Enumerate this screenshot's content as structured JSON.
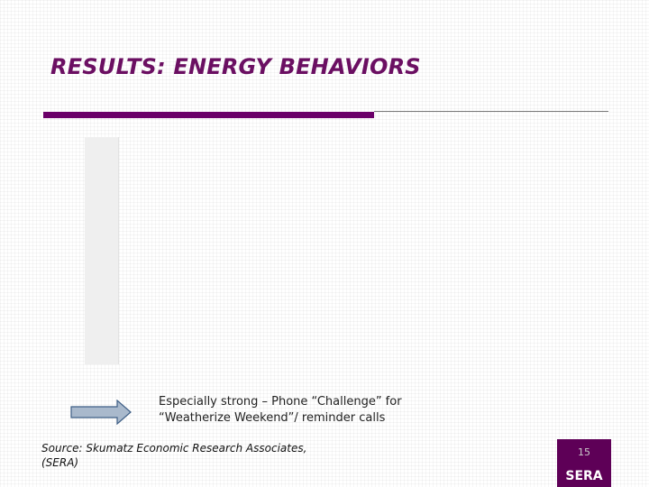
{
  "slide": {
    "title": "RESULTS: ENERGY BEHAVIORS",
    "note_line1": "Especially strong – Phone “Challenge” for",
    "note_line2": "“Weatherize Weekend”/ reminder calls",
    "source_line1": "Source:  Skumatz Economic Research Associates,",
    "source_line2": "(SERA)",
    "page_number": "15",
    "logo_text": "SERA"
  },
  "icons": {
    "arrow": "right-arrow-icon"
  },
  "colors": {
    "title": "#6b0f62",
    "accent_bar": "#6b0069",
    "thin_rule": "#7a7a7a",
    "arrow_fill": "#a9b9cc",
    "arrow_stroke": "#3f5f86",
    "logo_bg": "#5e0057"
  }
}
